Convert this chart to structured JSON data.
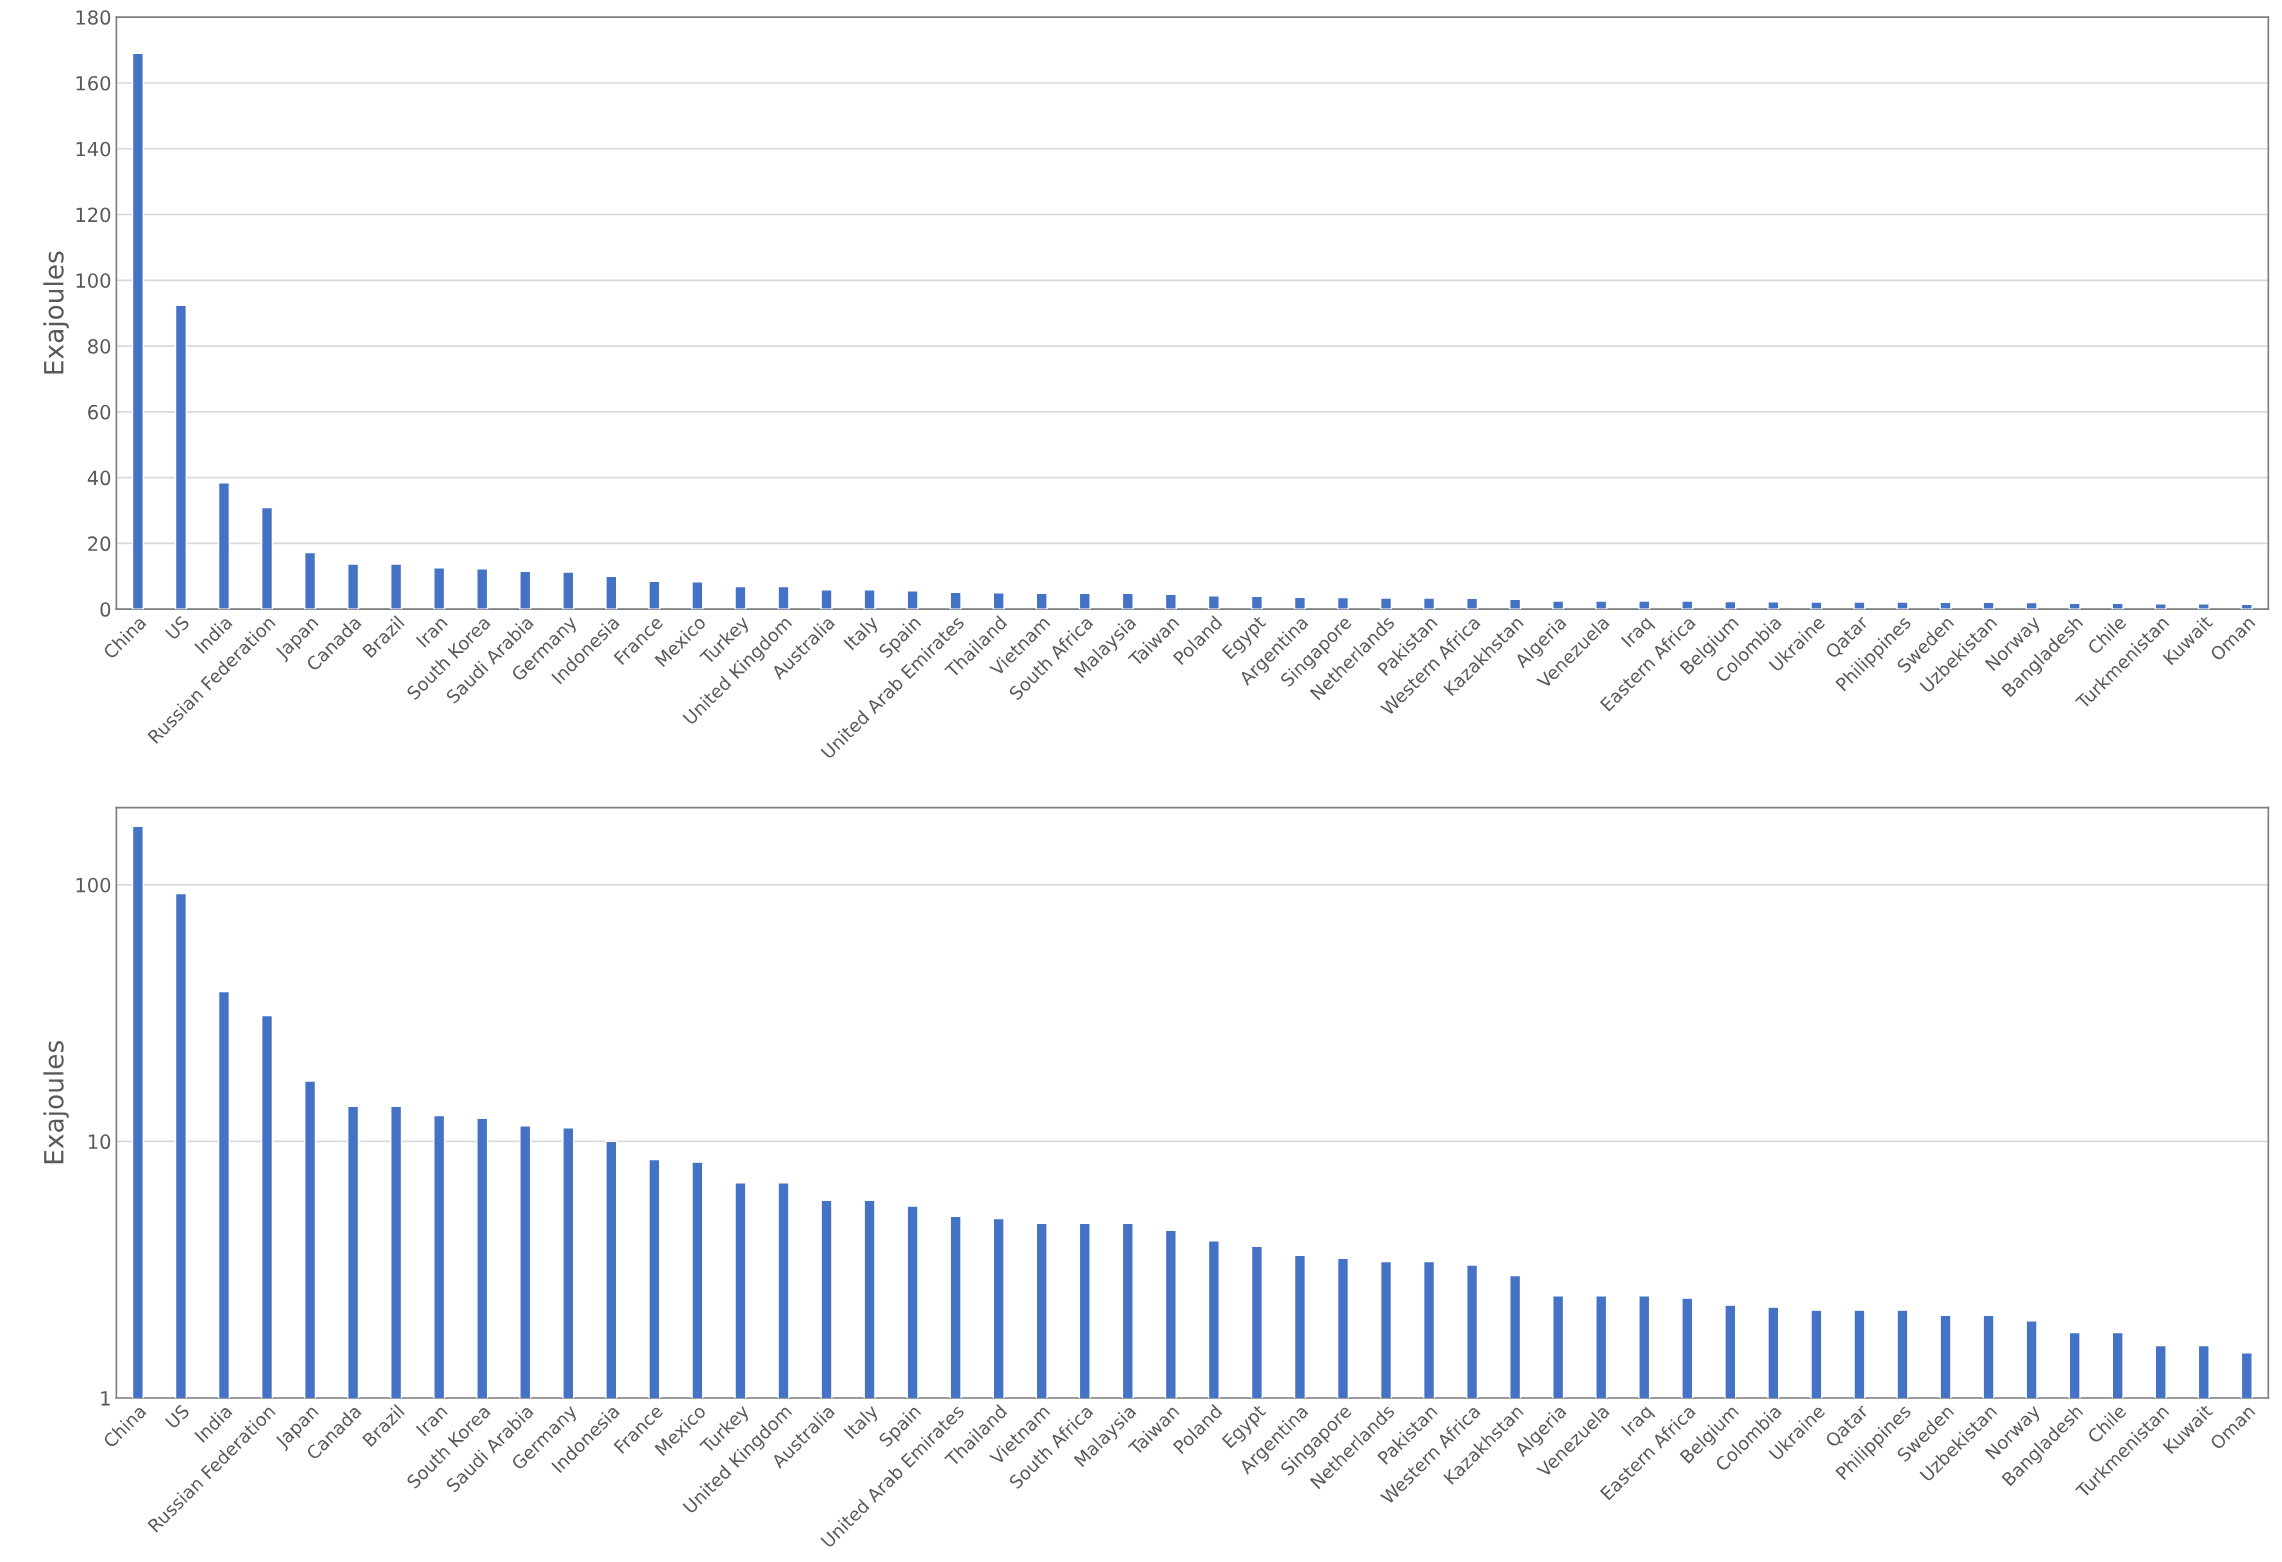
{
  "chart_data": [
    {
      "type": "bar",
      "ylabel": "Exajoules",
      "color": "#4472c4",
      "grid": "y",
      "ylim": [
        0,
        180
      ],
      "yticks": [
        0,
        20,
        40,
        60,
        80,
        100,
        120,
        140,
        160,
        180
      ],
      "categories": [
        "China",
        "US",
        "India",
        "Russian Federation",
        "Japan",
        "Canada",
        "Brazil",
        "Iran",
        "South Korea",
        "Saudi Arabia",
        "Germany",
        "Indonesia",
        "France",
        "Mexico",
        "Turkey",
        "United Kingdom",
        "Australia",
        "Italy",
        "Spain",
        "United Arab Emirates",
        "Thailand",
        "Vietnam",
        "South Africa",
        "Malaysia",
        "Taiwan",
        "Poland",
        "Egypt",
        "Argentina",
        "Singapore",
        "Netherlands",
        "Pakistan",
        "Western Africa",
        "Kazakhstan",
        "Algeria",
        "Venezuela",
        "Iraq",
        "Eastern Africa",
        "Belgium",
        "Colombia",
        "Ukraine",
        "Qatar",
        "Philippines",
        "Sweden",
        "Uzbekistan",
        "Norway",
        "Bangladesh",
        "Chile",
        "Turkmenistan",
        "Kuwait",
        "Oman"
      ],
      "values": [
        169,
        92.4,
        38.4,
        30.9,
        17.2,
        13.7,
        13.7,
        12.6,
        12.3,
        11.5,
        11.3,
        10.0,
        8.5,
        8.3,
        6.9,
        6.9,
        5.9,
        5.9,
        5.6,
        5.1,
        5.0,
        4.8,
        4.8,
        4.8,
        4.5,
        4.1,
        3.9,
        3.6,
        3.5,
        3.4,
        3.4,
        3.3,
        3.0,
        2.5,
        2.5,
        2.5,
        2.45,
        2.3,
        2.26,
        2.2,
        2.2,
        2.2,
        2.1,
        2.1,
        2.0,
        1.8,
        1.8,
        1.6,
        1.6,
        1.5
      ]
    },
    {
      "type": "bar",
      "ylabel": "Exajoules",
      "color": "#4472c4",
      "grid": "y",
      "log": true,
      "ylim": [
        1,
        200
      ],
      "yticks": [
        1,
        10,
        100
      ],
      "categories": [
        "China",
        "US",
        "India",
        "Russian Federation",
        "Japan",
        "Canada",
        "Brazil",
        "Iran",
        "South Korea",
        "Saudi Arabia",
        "Germany",
        "Indonesia",
        "France",
        "Mexico",
        "Turkey",
        "United Kingdom",
        "Australia",
        "Italy",
        "Spain",
        "United Arab Emirates",
        "Thailand",
        "Vietnam",
        "South Africa",
        "Malaysia",
        "Taiwan",
        "Poland",
        "Egypt",
        "Argentina",
        "Singapore",
        "Netherlands",
        "Pakistan",
        "Western Africa",
        "Kazakhstan",
        "Algeria",
        "Venezuela",
        "Iraq",
        "Eastern Africa",
        "Belgium",
        "Colombia",
        "Ukraine",
        "Qatar",
        "Philippines",
        "Sweden",
        "Uzbekistan",
        "Norway",
        "Bangladesh",
        "Chile",
        "Turkmenistan",
        "Kuwait",
        "Oman"
      ],
      "values": [
        169,
        92.4,
        38.4,
        30.9,
        17.2,
        13.7,
        13.7,
        12.6,
        12.3,
        11.5,
        11.3,
        10.0,
        8.5,
        8.3,
        6.9,
        6.9,
        5.9,
        5.9,
        5.6,
        5.1,
        5.0,
        4.8,
        4.8,
        4.8,
        4.5,
        4.1,
        3.9,
        3.6,
        3.5,
        3.4,
        3.4,
        3.3,
        3.0,
        2.5,
        2.5,
        2.5,
        2.45,
        2.3,
        2.26,
        2.2,
        2.2,
        2.2,
        2.1,
        2.1,
        2.0,
        1.8,
        1.8,
        1.6,
        1.6,
        1.5
      ]
    }
  ]
}
